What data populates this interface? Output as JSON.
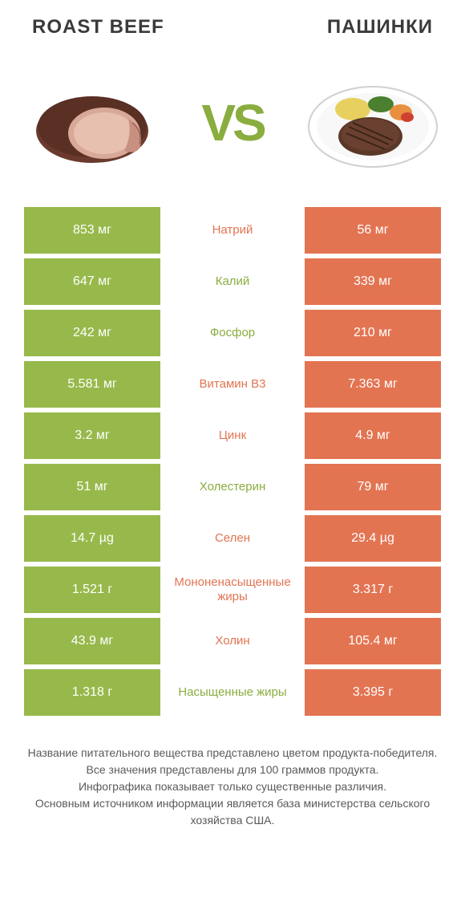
{
  "header": {
    "left": "ROAST BEEF",
    "right": "ПАШИНКИ"
  },
  "vs": "VS",
  "colors": {
    "green": "#97b94b",
    "orange": "#e37452",
    "mid_green_text": "#8aad3f",
    "mid_orange_text": "#e37452",
    "white": "#ffffff"
  },
  "rows": [
    {
      "left": "853 мг",
      "mid": "Натрий",
      "right": "56 мг",
      "leftColor": "#97b94b",
      "rightColor": "#e37452",
      "midColor": "#e37452"
    },
    {
      "left": "647 мг",
      "mid": "Калий",
      "right": "339 мг",
      "leftColor": "#97b94b",
      "rightColor": "#e37452",
      "midColor": "#8aad3f"
    },
    {
      "left": "242 мг",
      "mid": "Фосфор",
      "right": "210 мг",
      "leftColor": "#97b94b",
      "rightColor": "#e37452",
      "midColor": "#8aad3f"
    },
    {
      "left": "5.581 мг",
      "mid": "Витамин B3",
      "right": "7.363 мг",
      "leftColor": "#97b94b",
      "rightColor": "#e37452",
      "midColor": "#e37452"
    },
    {
      "left": "3.2 мг",
      "mid": "Цинк",
      "right": "4.9 мг",
      "leftColor": "#97b94b",
      "rightColor": "#e37452",
      "midColor": "#e37452"
    },
    {
      "left": "51 мг",
      "mid": "Холестерин",
      "right": "79 мг",
      "leftColor": "#97b94b",
      "rightColor": "#e37452",
      "midColor": "#8aad3f"
    },
    {
      "left": "14.7 µg",
      "mid": "Селен",
      "right": "29.4 µg",
      "leftColor": "#97b94b",
      "rightColor": "#e37452",
      "midColor": "#e37452"
    },
    {
      "left": "1.521 г",
      "mid": "Мононенасыщенные жиры",
      "right": "3.317 г",
      "leftColor": "#97b94b",
      "rightColor": "#e37452",
      "midColor": "#e37452"
    },
    {
      "left": "43.9 мг",
      "mid": "Холин",
      "right": "105.4 мг",
      "leftColor": "#97b94b",
      "rightColor": "#e37452",
      "midColor": "#e37452"
    },
    {
      "left": "1.318 г",
      "mid": "Насыщенные жиры",
      "right": "3.395 г",
      "leftColor": "#97b94b",
      "rightColor": "#e37452",
      "midColor": "#8aad3f"
    }
  ],
  "footer": "Название питательного вещества представлено цветом продукта-победителя.\nВсе значения представлены для 100 граммов продукта.\nИнфографика показывает только существенные различия.\nОсновным источником информации является база министерства сельского хозяйства США."
}
